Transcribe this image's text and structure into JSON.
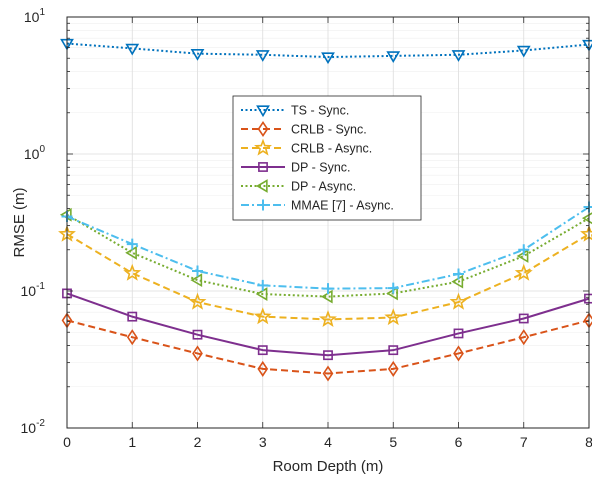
{
  "chart_data": {
    "type": "line",
    "xlabel": "Room Depth (m)",
    "ylabel": "RMSE (m)",
    "xlim": [
      0,
      8
    ],
    "ylim": [
      0.01,
      10
    ],
    "yscale": "log",
    "grid": true,
    "legend_placement": "center-top",
    "x_ticks": [
      "0",
      "1",
      "2",
      "3",
      "4",
      "5",
      "6",
      "7",
      "8"
    ],
    "y_ticks": [
      {
        "value": 0.01,
        "base": "10",
        "exp": "-2"
      },
      {
        "value": 0.1,
        "base": "10",
        "exp": "-1"
      },
      {
        "value": 1,
        "base": "10",
        "exp": "0"
      },
      {
        "value": 10,
        "base": "10",
        "exp": "1"
      }
    ],
    "x": [
      0,
      1,
      2,
      3,
      4,
      5,
      6,
      7,
      8
    ],
    "series": [
      {
        "name": "TS - Sync.",
        "color": "#0072BD",
        "dash": "dotted",
        "marker": "triangle-down",
        "values": [
          6.4,
          5.9,
          5.4,
          5.3,
          5.1,
          5.2,
          5.3,
          5.7,
          6.3
        ]
      },
      {
        "name": "CRLB - Sync.",
        "color": "#D95319",
        "dash": "dashed",
        "marker": "diamond",
        "values": [
          0.061,
          0.046,
          0.035,
          0.027,
          0.025,
          0.027,
          0.035,
          0.046,
          0.061
        ]
      },
      {
        "name": "CRLB - Async.",
        "color": "#EDB120",
        "dash": "dashed",
        "marker": "star",
        "values": [
          0.26,
          0.135,
          0.083,
          0.065,
          0.062,
          0.064,
          0.083,
          0.135,
          0.26
        ]
      },
      {
        "name": "DP - Sync.",
        "color": "#7E2F8E",
        "dash": "solid",
        "marker": "square",
        "values": [
          0.096,
          0.065,
          0.048,
          0.037,
          0.034,
          0.037,
          0.049,
          0.063,
          0.088
        ]
      },
      {
        "name": "DP - Async.",
        "color": "#77AC30",
        "dash": "dotted",
        "marker": "triangle-left",
        "values": [
          0.36,
          0.19,
          0.12,
          0.095,
          0.091,
          0.096,
          0.117,
          0.18,
          0.34
        ]
      },
      {
        "name": "MMAE [7] - Async.",
        "color": "#4DBEEE",
        "dash": "dashdot",
        "marker": "plus",
        "values": [
          0.35,
          0.22,
          0.14,
          0.11,
          0.104,
          0.105,
          0.133,
          0.2,
          0.41
        ]
      }
    ]
  }
}
